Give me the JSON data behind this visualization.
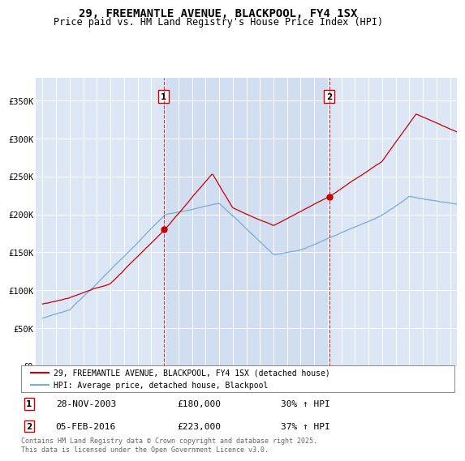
{
  "title": "29, FREEMANTLE AVENUE, BLACKPOOL, FY4 1SX",
  "subtitle": "Price paid vs. HM Land Registry's House Price Index (HPI)",
  "legend_line1": "29, FREEMANTLE AVENUE, BLACKPOOL, FY4 1SX (detached house)",
  "legend_line2": "HPI: Average price, detached house, Blackpool",
  "footnote": "Contains HM Land Registry data © Crown copyright and database right 2025.\nThis data is licensed under the Open Government Licence v3.0.",
  "marker1_date": "28-NOV-2003",
  "marker1_price": "£180,000",
  "marker1_hpi": "30% ↑ HPI",
  "marker1_year": 2003.92,
  "marker2_date": "05-FEB-2016",
  "marker2_price": "£223,000",
  "marker2_hpi": "37% ↑ HPI",
  "marker2_year": 2016.1,
  "ylim": [
    0,
    380000
  ],
  "xlim_start": 1994.5,
  "xlim_end": 2025.5,
  "background_color": "#dce6f5",
  "shade_color": "#d0dcf0",
  "red_color": "#cc0000",
  "blue_color": "#7aaccf",
  "marker_box_color": "#cc0000",
  "grid_color": "#ffffff",
  "title_fontsize": 10,
  "subtitle_fontsize": 8.5
}
